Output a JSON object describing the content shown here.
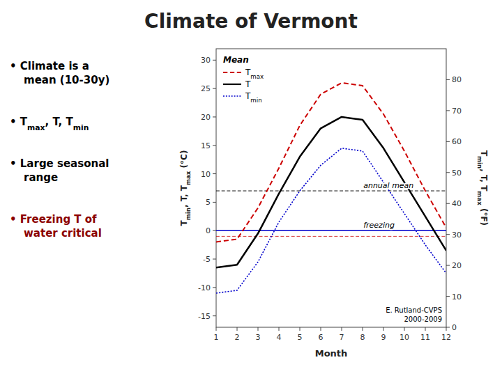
{
  "chart_data": {
    "type": "line",
    "title": "Climate of Vermont",
    "x_label": "Month",
    "y_label": "Tmin, T, Tmax (°C)",
    "y2_label": "Tmin, T, Tmax (°F)",
    "x": [
      1,
      2,
      3,
      4,
      5,
      6,
      7,
      8,
      9,
      10,
      11,
      12
    ],
    "xlim": [
      1,
      12
    ],
    "xticks": [
      1,
      2,
      3,
      4,
      5,
      6,
      7,
      8,
      9,
      10,
      11,
      12
    ],
    "ylim": [
      -17,
      32
    ],
    "yticks": [
      -15,
      -10,
      -5,
      0,
      5,
      10,
      15,
      20,
      25,
      30
    ],
    "y2lim": [
      0,
      90
    ],
    "y2ticks": [
      0,
      10,
      20,
      30,
      40,
      50,
      60,
      70,
      80
    ],
    "grid": false,
    "legend": "upper left",
    "legend_title": "Mean",
    "series": [
      {
        "name": "Tmax",
        "color": "#cc0000",
        "line_style": "dashed",
        "values": [
          -2.0,
          -1.5,
          4.0,
          11.0,
          18.5,
          24.0,
          26.0,
          25.5,
          20.5,
          14.0,
          7.0,
          0.5
        ]
      },
      {
        "name": "T",
        "color": "#000000",
        "line_style": "solid",
        "values": [
          -6.5,
          -6.0,
          -0.5,
          6.5,
          13.0,
          18.0,
          20.0,
          19.5,
          14.5,
          8.5,
          2.5,
          -3.5
        ]
      },
      {
        "name": "Tmin",
        "color": "#0000cc",
        "line_style": "dotted",
        "values": [
          -11.0,
          -10.5,
          -5.5,
          1.5,
          7.0,
          11.5,
          14.5,
          14.0,
          8.5,
          3.0,
          -2.5,
          -7.5
        ]
      }
    ],
    "reference_lines": [
      {
        "value": 7.0,
        "label": "annual mean",
        "color": "#000000",
        "line_style": "dashed"
      },
      {
        "value": 0.0,
        "label": "freezing",
        "color": "#0000cc",
        "line_style": "solid"
      },
      {
        "value": -1.0,
        "color": "#cc0000",
        "line_style": "dashed"
      }
    ],
    "credit": [
      "E. Rutland-CVPS",
      "2000-2009"
    ],
    "notes": [
      {
        "lines": [
          "•  Climate is a",
          "mean (10-30y)"
        ],
        "color": "#000000"
      },
      {
        "lines": [
          "•  Tmax, T, Tmin"
        ],
        "color": "#000000"
      },
      {
        "lines": [
          "•  Large seasonal",
          "range"
        ],
        "color": "#000000"
      },
      {
        "lines": [
          "•  Freezing T of",
          "water critical"
        ],
        "color": "#8b0000"
      }
    ]
  }
}
